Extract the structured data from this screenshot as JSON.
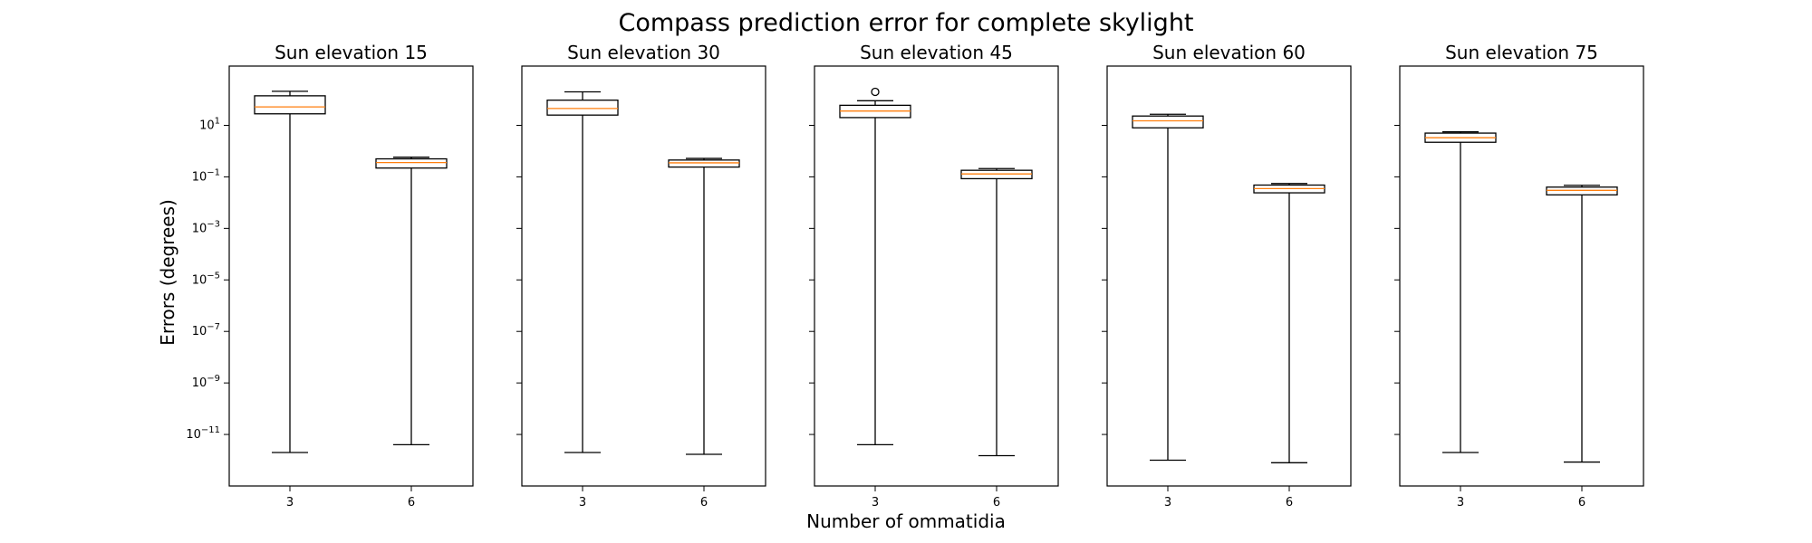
{
  "chart_data": {
    "type": "boxplot",
    "title": "Compass prediction error for complete skylight",
    "xlabel": "Number of ommatidia",
    "ylabel": "Errors (degrees)",
    "yscale": "log",
    "ylim": [
      1e-13,
      2000
    ],
    "yticks": [
      {
        "value": 1e-11,
        "base": "10",
        "exp": "−11"
      },
      {
        "value": 1e-09,
        "base": "10",
        "exp": "−9"
      },
      {
        "value": 1e-07,
        "base": "10",
        "exp": "−7"
      },
      {
        "value": 1e-05,
        "base": "10",
        "exp": "−5"
      },
      {
        "value": 0.001,
        "base": "10",
        "exp": "−3"
      },
      {
        "value": 0.1,
        "base": "10",
        "exp": "−1"
      },
      {
        "value": 10,
        "base": "10",
        "exp": "1"
      }
    ],
    "shared_y": true,
    "median_color": "#ff7f0e",
    "box_color": "#000000",
    "panels": [
      {
        "title": "Sun elevation 15",
        "boxes": [
          {
            "label": "3",
            "whislo": 2e-12,
            "q1": 28,
            "med": 52,
            "q3": 140,
            "whishi": 210,
            "fliers": []
          },
          {
            "label": "6",
            "whislo": 4e-12,
            "q1": 0.22,
            "med": 0.36,
            "q3": 0.5,
            "whishi": 0.58,
            "fliers": []
          }
        ]
      },
      {
        "title": "Sun elevation 30",
        "boxes": [
          {
            "label": "3",
            "whislo": 2e-12,
            "q1": 25,
            "med": 45,
            "q3": 95,
            "whishi": 200,
            "fliers": []
          },
          {
            "label": "6",
            "whislo": 1.7e-12,
            "q1": 0.24,
            "med": 0.35,
            "q3": 0.45,
            "whishi": 0.52,
            "fliers": []
          }
        ]
      },
      {
        "title": "Sun elevation 45",
        "boxes": [
          {
            "label": "3",
            "whislo": 4e-12,
            "q1": 20,
            "med": 36,
            "q3": 60,
            "whishi": 90,
            "fliers": [
              200
            ]
          },
          {
            "label": "6",
            "whislo": 1.5e-12,
            "q1": 0.085,
            "med": 0.13,
            "q3": 0.18,
            "whishi": 0.21,
            "fliers": []
          }
        ]
      },
      {
        "title": "Sun elevation 60",
        "boxes": [
          {
            "label": "3",
            "whislo": 1e-12,
            "q1": 8,
            "med": 15,
            "q3": 23,
            "whishi": 27,
            "fliers": []
          },
          {
            "label": "6",
            "whislo": 8e-13,
            "q1": 0.024,
            "med": 0.035,
            "q3": 0.048,
            "whishi": 0.055,
            "fliers": []
          }
        ]
      },
      {
        "title": "Sun elevation 75",
        "boxes": [
          {
            "label": "3",
            "whislo": 2e-12,
            "q1": 2.2,
            "med": 3.3,
            "q3": 5,
            "whishi": 5.6,
            "fliers": []
          },
          {
            "label": "6",
            "whislo": 8.5e-13,
            "q1": 0.02,
            "med": 0.03,
            "q3": 0.04,
            "whishi": 0.047,
            "fliers": []
          }
        ]
      }
    ]
  }
}
